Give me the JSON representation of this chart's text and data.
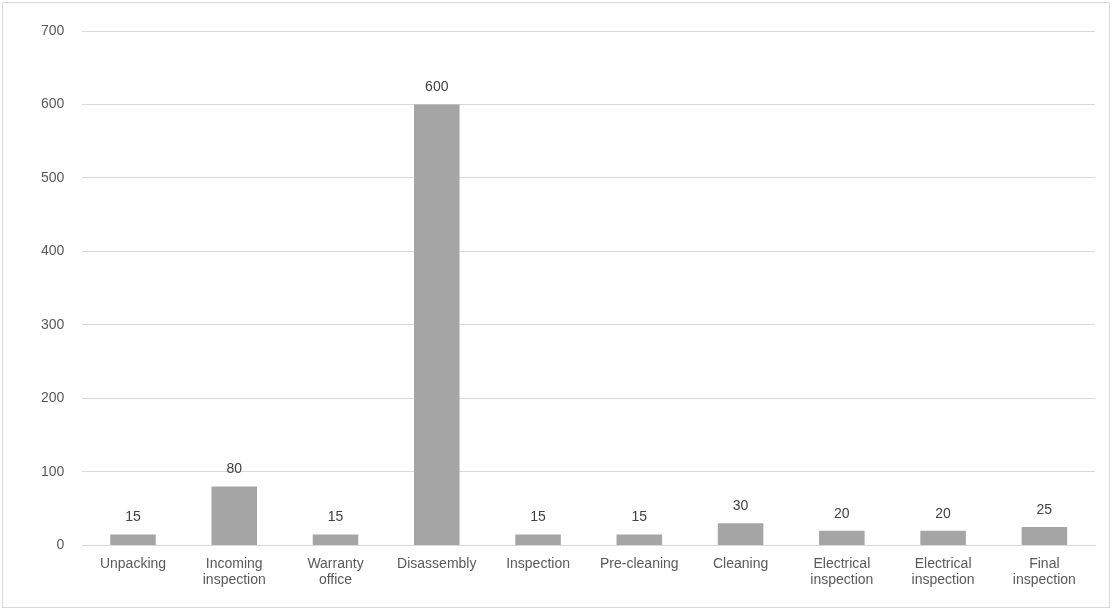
{
  "chart_data": {
    "type": "bar",
    "categories": [
      "Unpacking",
      "Incoming inspection",
      "Warranty office",
      "Disassembly",
      "Inspection",
      "Pre-cleaning",
      "Cleaning",
      "Electrical inspection",
      "Electrical inspection",
      "Final inspection"
    ],
    "values": [
      15,
      80,
      15,
      600,
      15,
      15,
      30,
      20,
      20,
      25
    ],
    "color": "#a5a5a5",
    "ylim": [
      0,
      700
    ],
    "yticks": [
      0,
      100,
      200,
      300,
      400,
      500,
      600,
      700
    ],
    "grid": "y",
    "data_labels": true,
    "legend": false
  }
}
